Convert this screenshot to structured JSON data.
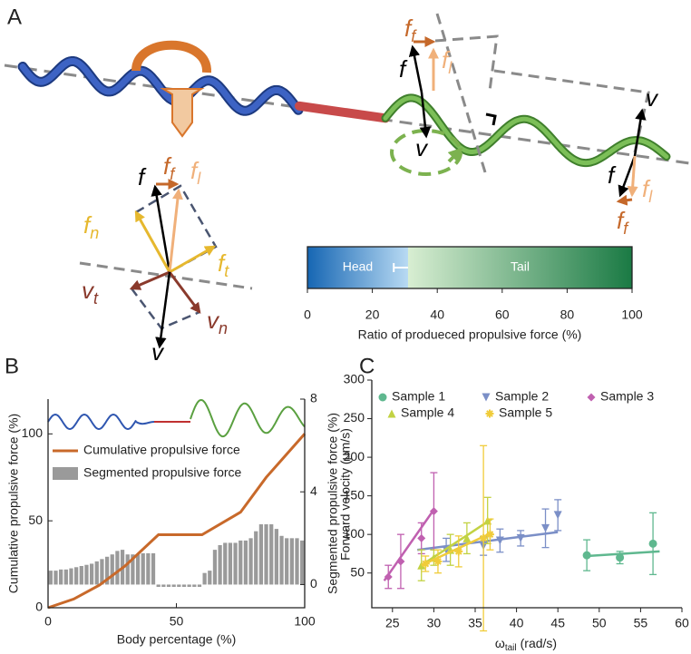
{
  "panel_labels": [
    "A",
    "B",
    "C"
  ],
  "diagram": {
    "labels": [
      {
        "text": "f",
        "sub": "f",
        "color": "#c5682a"
      },
      {
        "text": "f",
        "sub": "l",
        "color": "#f0b07a"
      },
      {
        "text": "f",
        "color": "#000000"
      },
      {
        "text": "v",
        "color": "#000000"
      },
      {
        "text": "v",
        "color": "#000000"
      },
      {
        "text": "f",
        "color": "#000000"
      },
      {
        "text": "f",
        "sub": "l",
        "color": "#f0b07a"
      },
      {
        "text": "f",
        "sub": "f",
        "color": "#c5682a"
      },
      {
        "text": "f",
        "color": "#000000"
      },
      {
        "text": "f",
        "sub": "f",
        "color": "#c5682a"
      },
      {
        "text": "f",
        "sub": "l",
        "color": "#f0b07a"
      },
      {
        "text": "f",
        "sub": "n",
        "color": "#e6b82e"
      },
      {
        "text": "f",
        "sub": "t",
        "color": "#e6b82e"
      },
      {
        "text": "v",
        "sub": "t",
        "color": "#8a3a2c"
      },
      {
        "text": "v",
        "sub": "n",
        "color": "#8a3a2c"
      },
      {
        "text": "v",
        "color": "#000000"
      }
    ]
  },
  "chart_data": [
    {
      "type": "colorbar",
      "xlabel": "Ratio of produeced propulsive force (%)",
      "categories": [
        "Head",
        "Tail"
      ],
      "values": [
        31,
        69
      ],
      "errors": [
        4.4,
        null
      ],
      "colors": [
        [
          "#1666b3",
          "#b8daf3"
        ],
        [
          "#d8eed2",
          "#1a7a44"
        ]
      ],
      "xlim": [
        0,
        100
      ],
      "xticks": [
        0,
        20,
        40,
        60,
        80,
        100
      ]
    },
    {
      "type": "combo",
      "xlabel": "Body percentage (%)",
      "ylabel": "Cumulative propulsive force (%)",
      "y2label": "Segmented propulsive force (%)",
      "xlim": [
        0,
        100
      ],
      "xticks": [
        0,
        50,
        100
      ],
      "ylim": [
        0,
        120
      ],
      "yticks": [
        0,
        50,
        100
      ],
      "y2lim": [
        -1,
        8
      ],
      "y2ticks": [
        0,
        4,
        8
      ],
      "legend": "upper left",
      "series": [
        {
          "name": "Cumulative propulsive force",
          "type": "line",
          "color": "#c8692a",
          "x": [
            0,
            10,
            20,
            30,
            43,
            60,
            75,
            85,
            100
          ],
          "values": [
            0,
            5,
            13,
            24,
            42,
            42,
            55,
            75,
            100
          ]
        },
        {
          "name": "Segmented propulsive force",
          "type": "bar",
          "axis": "y2",
          "color": "#9a9a9a",
          "x": [
            1,
            3,
            5,
            7,
            9,
            11,
            13,
            15,
            17,
            19,
            21,
            23,
            25,
            27,
            29,
            31,
            33,
            35,
            37,
            39,
            41,
            43,
            45,
            47,
            49,
            51,
            53,
            55,
            57,
            59,
            61,
            63,
            65,
            67,
            69,
            71,
            73,
            75,
            77,
            79,
            81,
            83,
            85,
            87,
            89,
            91,
            93,
            95,
            97,
            99
          ],
          "values": [
            0.6,
            0.6,
            0.65,
            0.65,
            0.7,
            0.75,
            0.8,
            0.85,
            0.9,
            1.0,
            1.1,
            1.2,
            1.3,
            1.45,
            1.5,
            1.3,
            1.3,
            1.3,
            1.35,
            1.35,
            1.35,
            -0.1,
            -0.1,
            -0.1,
            -0.1,
            -0.1,
            -0.1,
            -0.1,
            -0.1,
            -0.1,
            0.5,
            0.6,
            1.5,
            1.7,
            1.8,
            1.8,
            1.8,
            1.9,
            1.9,
            2.0,
            2.3,
            2.6,
            2.6,
            2.6,
            2.4,
            2.1,
            2.0,
            2.0,
            2.0,
            1.9
          ]
        }
      ]
    },
    {
      "type": "scatter",
      "xlabel": [
        "ω",
        "tail",
        "(rad/s)"
      ],
      "ylabel": "Forward velocity (μm/s)",
      "xlim": [
        22.5,
        60
      ],
      "xticks": [
        25,
        30,
        35,
        40,
        45,
        50,
        55,
        60
      ],
      "ylim": [
        5,
        300
      ],
      "yticks": [
        50,
        100,
        150,
        200,
        250,
        300
      ],
      "legend": "top",
      "series": [
        {
          "name": "Sample 1",
          "color": "#5fb88f",
          "marker": "circle",
          "x": [
            48.5,
            52.5,
            56.5
          ],
          "values": [
            73,
            70,
            88
          ],
          "errors": [
            20,
            8,
            40
          ],
          "fit_x": [
            48.5,
            57.3
          ],
          "fit_y": [
            72,
            78
          ]
        },
        {
          "name": "Sample 2",
          "color": "#7b8fc7",
          "marker": "triangle-down",
          "x": [
            31.5,
            36,
            38,
            40.5,
            43.5,
            45
          ],
          "values": [
            80,
            85,
            92,
            95,
            108,
            125
          ],
          "errors": [
            15,
            12,
            15,
            10,
            25,
            20
          ],
          "fit_x": [
            28,
            45
          ],
          "fit_y": [
            80,
            103
          ]
        },
        {
          "name": "Sample 3",
          "color": "#c060b0",
          "marker": "diamond",
          "x": [
            24.5,
            26,
            28.5,
            30
          ],
          "values": [
            45,
            65,
            95,
            130
          ],
          "errors": [
            15,
            35,
            20,
            50
          ],
          "fit_x": [
            24,
            30
          ],
          "fit_y": [
            40,
            132
          ]
        },
        {
          "name": "Sample 4",
          "color": "#c2d243",
          "marker": "triangle-up",
          "x": [
            28.5,
            30,
            32,
            34,
            36.5
          ],
          "values": [
            60,
            70,
            80,
            95,
            118
          ],
          "errors": [
            20,
            10,
            20,
            20,
            30
          ],
          "fit_x": [
            28.5,
            37
          ],
          "fit_y": [
            60,
            120
          ]
        },
        {
          "name": "Sample 5",
          "color": "#f0cc3a",
          "marker": "star",
          "x": [
            29,
            30.5,
            33,
            36,
            36.8
          ],
          "values": [
            62,
            65,
            78,
            95,
            100
          ],
          "errors": [
            10,
            15,
            20,
            120,
            20
          ],
          "fit_x": [
            28.5,
            37
          ],
          "fit_y": [
            60,
            102
          ]
        }
      ]
    }
  ]
}
